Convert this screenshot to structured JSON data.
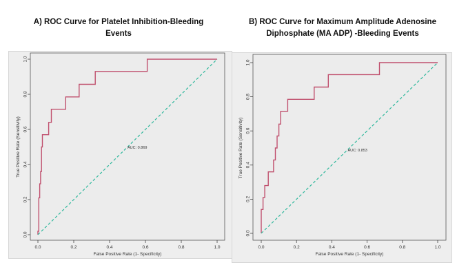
{
  "panels": [
    {
      "title_lines": [
        "A)  ROC Curve for Platelet Inhibition-Bleeding",
        "Events"
      ]
    },
    {
      "title_lines": [
        "B) ROC Curve for Maximum  Amplitude Adenosine",
        "Diphosphate  (MA ADP) -Bleeding Events"
      ]
    }
  ],
  "chart_data": [
    {
      "type": "line",
      "xlabel": "False Positive Rate (1- Specificity)",
      "ylabel": "True Positive Rate (Sensitivity)",
      "xlim": [
        0,
        1
      ],
      "ylim": [
        0,
        1
      ],
      "x_ticks": [
        "0.0",
        "0.2",
        "0.4",
        "0.6",
        "0.8",
        "1.0"
      ],
      "y_ticks": [
        "0.0",
        "0.2",
        "0.4",
        "0.6",
        "0.8",
        "1.0"
      ],
      "grid": false,
      "annotation": {
        "text": "AUC: 0.869",
        "x": 0.5,
        "y": 0.49
      },
      "series": [
        {
          "role": "roc",
          "color": "#c0506e",
          "x": [
            0.0,
            0.0,
            0.005,
            0.005,
            0.01,
            0.01,
            0.015,
            0.015,
            0.02,
            0.02,
            0.025,
            0.025,
            0.06,
            0.06,
            0.075,
            0.075,
            0.155,
            0.155,
            0.23,
            0.23,
            0.32,
            0.32,
            0.61,
            0.61,
            1.0
          ],
          "y": [
            0.0,
            0.02,
            0.02,
            0.21,
            0.21,
            0.29,
            0.29,
            0.36,
            0.36,
            0.5,
            0.5,
            0.57,
            0.57,
            0.64,
            0.64,
            0.715,
            0.715,
            0.785,
            0.785,
            0.857,
            0.857,
            0.93,
            0.93,
            1.0,
            1.0
          ]
        },
        {
          "role": "reference",
          "color": "#2fb89c",
          "x": [
            0,
            1
          ],
          "y": [
            0,
            1
          ]
        }
      ]
    },
    {
      "type": "line",
      "xlabel": "False Positive Rate (1- Specificity)",
      "ylabel": "True Positive Rate (Sensitivity)",
      "xlim": [
        0,
        1
      ],
      "ylim": [
        0,
        1
      ],
      "x_ticks": [
        "0.0",
        "0.2",
        "0.4",
        "0.6",
        "0.8",
        "1.0"
      ],
      "y_ticks": [
        "0.0",
        "0.2",
        "0.4",
        "0.6",
        "0.8",
        "1.0"
      ],
      "grid": false,
      "annotation": {
        "text": "AUC: 0.853",
        "x": 0.49,
        "y": 0.48
      },
      "series": [
        {
          "role": "roc",
          "color": "#c0506e",
          "x": [
            0.0,
            0.0,
            0.01,
            0.01,
            0.02,
            0.02,
            0.04,
            0.04,
            0.07,
            0.07,
            0.08,
            0.08,
            0.09,
            0.09,
            0.1,
            0.1,
            0.11,
            0.11,
            0.115,
            0.115,
            0.15,
            0.15,
            0.3,
            0.3,
            0.38,
            0.38,
            0.67,
            0.67,
            1.0
          ],
          "y": [
            0.0,
            0.14,
            0.14,
            0.21,
            0.21,
            0.28,
            0.28,
            0.36,
            0.36,
            0.43,
            0.43,
            0.5,
            0.5,
            0.57,
            0.57,
            0.64,
            0.64,
            0.715,
            0.715,
            0.715,
            0.715,
            0.785,
            0.785,
            0.857,
            0.857,
            0.93,
            0.93,
            1.0,
            1.0
          ]
        },
        {
          "role": "reference",
          "color": "#2fb89c",
          "x": [
            0,
            1
          ],
          "y": [
            0,
            1
          ]
        }
      ]
    }
  ]
}
